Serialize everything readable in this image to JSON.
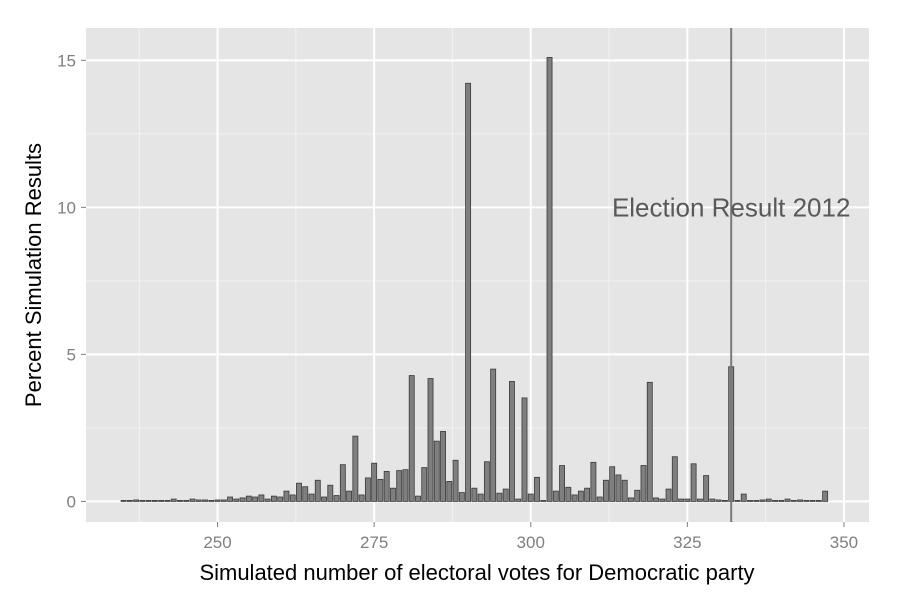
{
  "chart_data": {
    "type": "bar",
    "title": "",
    "xlabel": "Simulated number of electoral votes for Democratic party",
    "ylabel": "Percent Simulation Results",
    "xlim": [
      229,
      354
    ],
    "ylim": [
      -0.7,
      16.1
    ],
    "xticks": [
      250,
      275,
      300,
      325,
      350
    ],
    "yticks": [
      0,
      5,
      10,
      15
    ],
    "grid": true,
    "legend": "none",
    "bar_width": 1,
    "colors": {
      "panel": "#e5e5e5",
      "grid_major": "#ffffff",
      "bar_fill": "#7f7f7f",
      "bar_stroke": "#3a3a3a",
      "vline": "#7a7a7a",
      "annotation": "#595959",
      "tick_text": "#7f7f7f"
    },
    "x": [
      235,
      236,
      237,
      238,
      239,
      240,
      241,
      242,
      243,
      244,
      245,
      246,
      247,
      248,
      249,
      250,
      251,
      252,
      253,
      254,
      255,
      256,
      257,
      258,
      259,
      260,
      261,
      262,
      263,
      264,
      265,
      266,
      267,
      268,
      269,
      270,
      271,
      272,
      273,
      274,
      275,
      276,
      277,
      278,
      279,
      280,
      281,
      282,
      283,
      284,
      285,
      286,
      287,
      288,
      289,
      290,
      291,
      292,
      293,
      294,
      295,
      296,
      297,
      298,
      299,
      300,
      301,
      302,
      303,
      304,
      305,
      306,
      307,
      308,
      309,
      310,
      311,
      312,
      313,
      314,
      315,
      316,
      317,
      318,
      319,
      320,
      321,
      322,
      323,
      324,
      325,
      326,
      327,
      328,
      329,
      330,
      331,
      332,
      333,
      334,
      335,
      336,
      337,
      338,
      339,
      340,
      341,
      342,
      343,
      344,
      345,
      346,
      347
    ],
    "values": [
      0.02,
      0.03,
      0.05,
      0.03,
      0.03,
      0.03,
      0.03,
      0.03,
      0.08,
      0.03,
      0.03,
      0.08,
      0.05,
      0.05,
      0.03,
      0.05,
      0.05,
      0.15,
      0.08,
      0.12,
      0.18,
      0.15,
      0.22,
      0.08,
      0.18,
      0.15,
      0.35,
      0.22,
      0.62,
      0.5,
      0.25,
      0.72,
      0.15,
      0.55,
      0.2,
      1.25,
      0.35,
      2.22,
      0.22,
      0.8,
      1.3,
      0.75,
      1.02,
      0.45,
      1.05,
      1.08,
      4.28,
      0.18,
      1.15,
      4.18,
      2.05,
      2.38,
      0.68,
      1.4,
      0.3,
      14.22,
      0.45,
      0.25,
      1.35,
      4.5,
      0.28,
      0.42,
      4.08,
      0.08,
      3.52,
      0.25,
      0.82,
      0.03,
      15.1,
      0.35,
      1.22,
      0.48,
      0.22,
      0.35,
      0.45,
      1.33,
      0.15,
      0.72,
      1.18,
      0.9,
      0.72,
      0.12,
      0.38,
      1.22,
      4.05,
      0.12,
      0.08,
      0.42,
      1.52,
      0.08,
      0.08,
      1.28,
      0.08,
      0.88,
      0.08,
      0.05,
      0.03,
      4.58,
      0.03,
      0.25,
      0.03,
      0.03,
      0.05,
      0.08,
      0.03,
      0.03,
      0.08,
      0.03,
      0.05,
      0.03,
      0.03,
      0.03,
      0.35
    ],
    "annotations": [
      {
        "type": "vline",
        "x": 332
      },
      {
        "type": "text",
        "text": "Election Result 2012",
        "x": 332,
        "y": 10
      }
    ]
  }
}
